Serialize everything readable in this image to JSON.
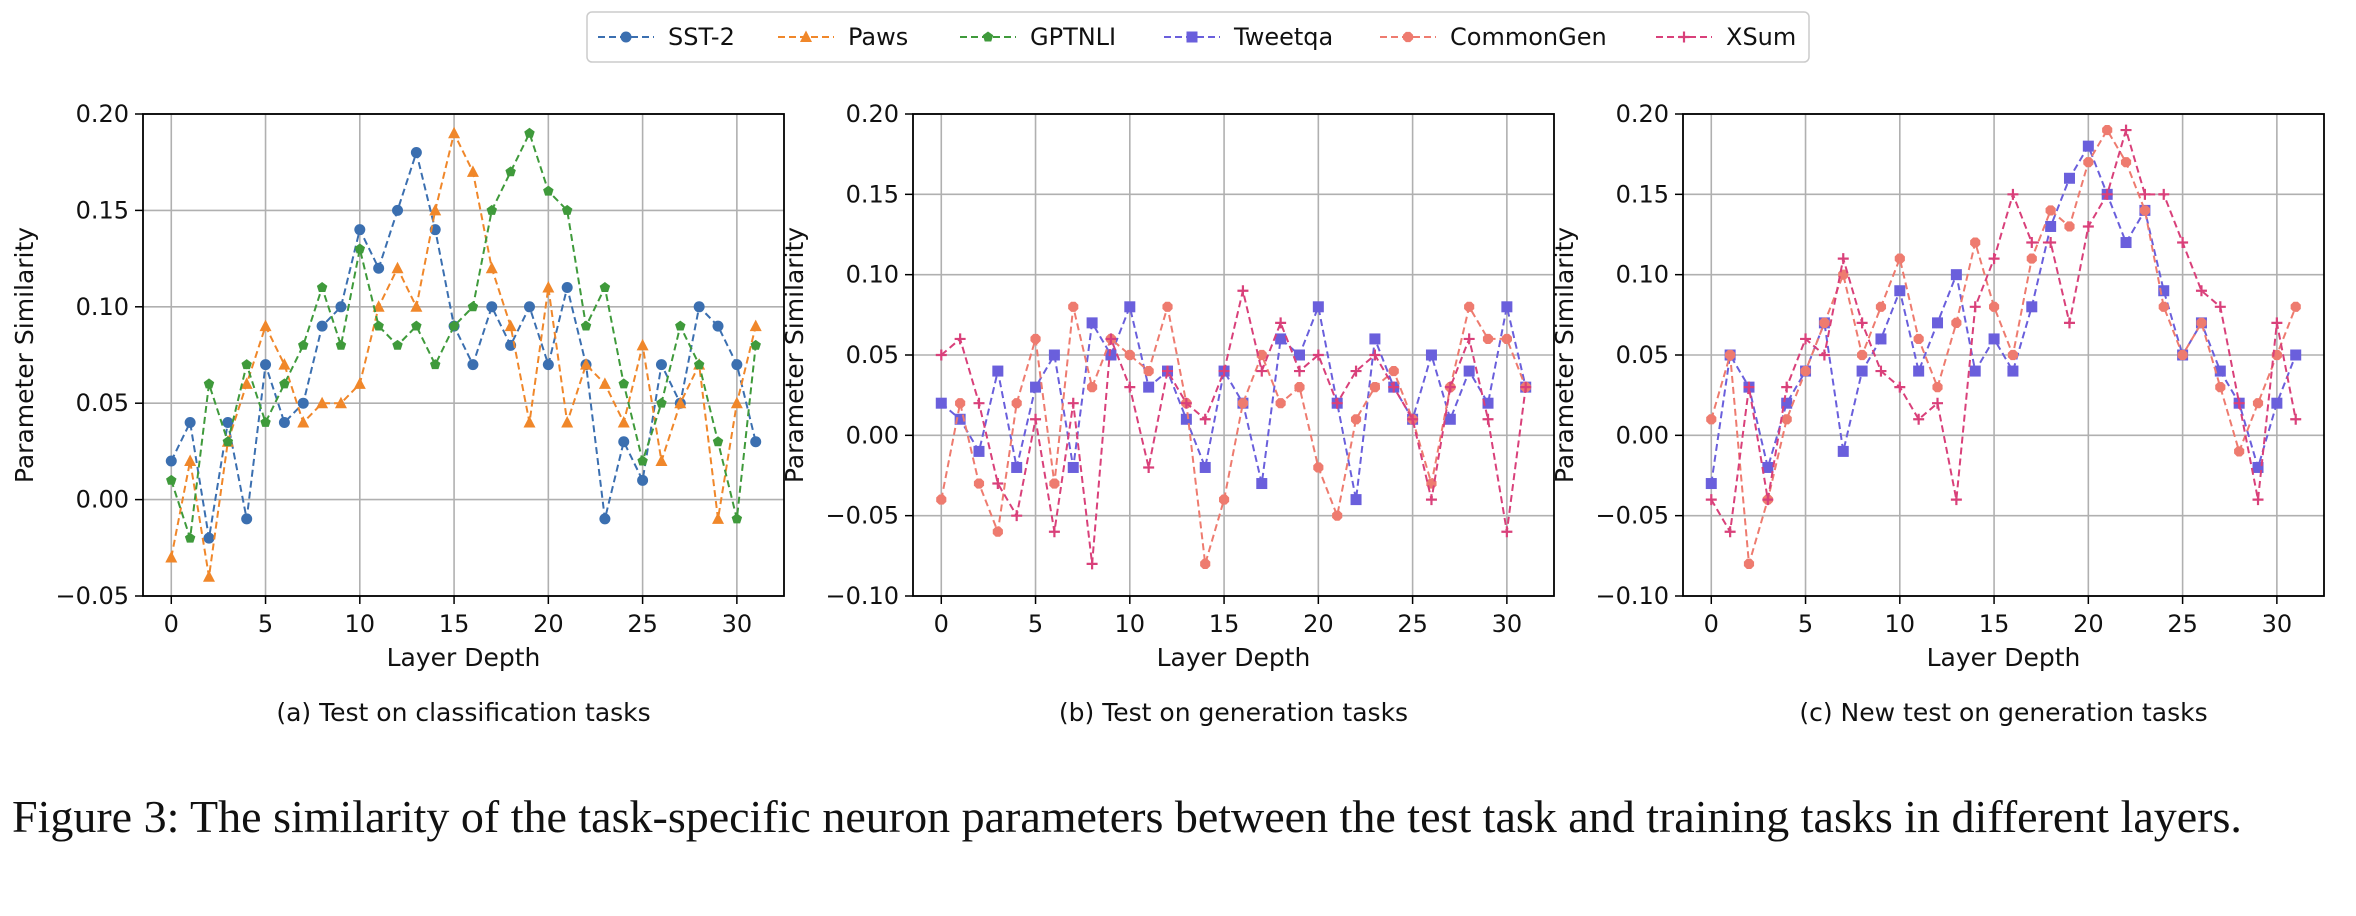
{
  "legend": [
    {
      "name": "SST-2",
      "color": "#3b6fb0",
      "marker": "circle"
    },
    {
      "name": "Paws",
      "color": "#f0872a",
      "marker": "triangle"
    },
    {
      "name": "GPTNLI",
      "color": "#3f9a3b",
      "marker": "pentagon"
    },
    {
      "name": "Tweetqa",
      "color": "#6a5fdc",
      "marker": "square"
    },
    {
      "name": "CommonGen",
      "color": "#ee7b6f",
      "marker": "octagon"
    },
    {
      "name": "XSum",
      "color": "#d9407a",
      "marker": "plus"
    }
  ],
  "chart_data": [
    {
      "type": "line",
      "subtitle": "(a) Test on classification tasks",
      "xlabel": "Layer Depth",
      "ylabel": "Parameter Similarity",
      "xlim": [
        -1.5,
        32.5
      ],
      "ylim": [
        -0.05,
        0.2
      ],
      "xticks": [
        0,
        5,
        10,
        15,
        20,
        25,
        30
      ],
      "yticks": [
        -0.05,
        0.0,
        0.05,
        0.1,
        0.15,
        0.2
      ],
      "ytick_labels": [
        "−0.05",
        "0.00",
        "0.05",
        "0.10",
        "0.15",
        "0.20"
      ],
      "grid": true,
      "x": [
        0,
        1,
        2,
        3,
        4,
        5,
        6,
        7,
        8,
        9,
        10,
        11,
        12,
        13,
        14,
        15,
        16,
        17,
        18,
        19,
        20,
        21,
        22,
        23,
        24,
        25,
        26,
        27,
        28,
        29,
        30,
        31
      ],
      "series": [
        {
          "name": "SST-2",
          "color": "#3b6fb0",
          "marker": "circle",
          "values": [
            0.02,
            0.04,
            -0.02,
            0.04,
            -0.01,
            0.07,
            0.04,
            0.05,
            0.09,
            0.1,
            0.14,
            0.12,
            0.15,
            0.18,
            0.14,
            0.09,
            0.07,
            0.1,
            0.08,
            0.1,
            0.07,
            0.11,
            0.07,
            -0.01,
            0.03,
            0.01,
            0.07,
            0.05,
            0.1,
            0.09,
            0.07,
            0.03
          ]
        },
        {
          "name": "Paws",
          "color": "#f0872a",
          "marker": "triangle",
          "values": [
            -0.03,
            0.02,
            -0.04,
            0.03,
            0.06,
            0.09,
            0.07,
            0.04,
            0.05,
            0.05,
            0.06,
            0.1,
            0.12,
            0.1,
            0.15,
            0.19,
            0.17,
            0.12,
            0.09,
            0.04,
            0.11,
            0.04,
            0.07,
            0.06,
            0.04,
            0.08,
            0.02,
            0.05,
            0.07,
            -0.01,
            0.05,
            0.09
          ]
        },
        {
          "name": "GPTNLI",
          "color": "#3f9a3b",
          "marker": "pentagon",
          "values": [
            0.01,
            -0.02,
            0.06,
            0.03,
            0.07,
            0.04,
            0.06,
            0.08,
            0.11,
            0.08,
            0.13,
            0.09,
            0.08,
            0.09,
            0.07,
            0.09,
            0.1,
            0.15,
            0.17,
            0.19,
            0.16,
            0.15,
            0.09,
            0.11,
            0.06,
            0.02,
            0.05,
            0.09,
            0.07,
            0.03,
            -0.01,
            0.08
          ]
        }
      ]
    },
    {
      "type": "line",
      "subtitle": "(b) Test on generation tasks",
      "xlabel": "Layer Depth",
      "ylabel": "Parameter Similarity",
      "xlim": [
        -1.5,
        32.5
      ],
      "ylim": [
        -0.1,
        0.2
      ],
      "xticks": [
        0,
        5,
        10,
        15,
        20,
        25,
        30
      ],
      "yticks": [
        -0.1,
        -0.05,
        0.0,
        0.05,
        0.1,
        0.15,
        0.2
      ],
      "ytick_labels": [
        "−0.10",
        "−0.05",
        "0.00",
        "0.05",
        "0.10",
        "0.15",
        "0.20"
      ],
      "grid": true,
      "x": [
        0,
        1,
        2,
        3,
        4,
        5,
        6,
        7,
        8,
        9,
        10,
        11,
        12,
        13,
        14,
        15,
        16,
        17,
        18,
        19,
        20,
        21,
        22,
        23,
        24,
        25,
        26,
        27,
        28,
        29,
        30,
        31
      ],
      "series": [
        {
          "name": "Tweetqa",
          "color": "#6a5fdc",
          "marker": "square",
          "values": [
            0.02,
            0.01,
            -0.01,
            0.04,
            -0.02,
            0.03,
            0.05,
            -0.02,
            0.07,
            0.05,
            0.08,
            0.03,
            0.04,
            0.01,
            -0.02,
            0.04,
            0.02,
            -0.03,
            0.06,
            0.05,
            0.08,
            0.02,
            -0.04,
            0.06,
            0.03,
            0.01,
            0.05,
            0.01,
            0.04,
            0.02,
            0.08,
            0.03
          ]
        },
        {
          "name": "CommonGen",
          "color": "#ee7b6f",
          "marker": "octagon",
          "values": [
            -0.04,
            0.02,
            -0.03,
            -0.06,
            0.02,
            0.06,
            -0.03,
            0.08,
            0.03,
            0.06,
            0.05,
            0.04,
            0.08,
            0.02,
            -0.08,
            -0.04,
            0.02,
            0.05,
            0.02,
            0.03,
            -0.02,
            -0.05,
            0.01,
            0.03,
            0.04,
            0.01,
            -0.03,
            0.03,
            0.08,
            0.06,
            0.06,
            0.03
          ]
        },
        {
          "name": "XSum",
          "color": "#d9407a",
          "marker": "plus",
          "values": [
            0.05,
            0.06,
            0.02,
            -0.03,
            -0.05,
            0.01,
            -0.06,
            0.02,
            -0.08,
            0.06,
            0.03,
            -0.02,
            0.04,
            0.02,
            0.01,
            0.04,
            0.09,
            0.04,
            0.07,
            0.04,
            0.05,
            0.02,
            0.04,
            0.05,
            0.03,
            0.01,
            -0.04,
            0.03,
            0.06,
            0.01,
            -0.06,
            0.03
          ]
        }
      ]
    },
    {
      "type": "line",
      "subtitle": "(c) New test on generation tasks",
      "xlabel": "Layer Depth",
      "ylabel": "Parameter Similarity",
      "xlim": [
        -1.5,
        32.5
      ],
      "ylim": [
        -0.1,
        0.2
      ],
      "xticks": [
        0,
        5,
        10,
        15,
        20,
        25,
        30
      ],
      "yticks": [
        -0.1,
        -0.05,
        0.0,
        0.05,
        0.1,
        0.15,
        0.2
      ],
      "ytick_labels": [
        "−0.10",
        "−0.05",
        "0.00",
        "0.05",
        "0.10",
        "0.15",
        "0.20"
      ],
      "grid": true,
      "x": [
        0,
        1,
        2,
        3,
        4,
        5,
        6,
        7,
        8,
        9,
        10,
        11,
        12,
        13,
        14,
        15,
        16,
        17,
        18,
        19,
        20,
        21,
        22,
        23,
        24,
        25,
        26,
        27,
        28,
        29,
        30,
        31
      ],
      "series": [
        {
          "name": "Tweetqa",
          "color": "#6a5fdc",
          "marker": "square",
          "values": [
            -0.03,
            0.05,
            0.03,
            -0.02,
            0.02,
            0.04,
            0.07,
            -0.01,
            0.04,
            0.06,
            0.09,
            0.04,
            0.07,
            0.1,
            0.04,
            0.06,
            0.04,
            0.08,
            0.13,
            0.16,
            0.18,
            0.15,
            0.12,
            0.14,
            0.09,
            0.05,
            0.07,
            0.04,
            0.02,
            -0.02,
            0.02,
            0.05
          ]
        },
        {
          "name": "CommonGen",
          "color": "#ee7b6f",
          "marker": "octagon",
          "values": [
            0.01,
            0.05,
            -0.08,
            -0.04,
            0.01,
            0.04,
            0.07,
            0.1,
            0.05,
            0.08,
            0.11,
            0.06,
            0.03,
            0.07,
            0.12,
            0.08,
            0.05,
            0.11,
            0.14,
            0.13,
            0.17,
            0.19,
            0.17,
            0.14,
            0.08,
            0.05,
            0.07,
            0.03,
            -0.01,
            0.02,
            0.05,
            0.08
          ]
        },
        {
          "name": "XSum",
          "color": "#d9407a",
          "marker": "plus",
          "values": [
            -0.04,
            -0.06,
            0.03,
            -0.04,
            0.03,
            0.06,
            0.05,
            0.11,
            0.07,
            0.04,
            0.03,
            0.01,
            0.02,
            -0.04,
            0.08,
            0.11,
            0.15,
            0.12,
            0.12,
            0.07,
            0.13,
            0.15,
            0.19,
            0.15,
            0.15,
            0.12,
            0.09,
            0.08,
            0.02,
            -0.04,
            0.07,
            0.01
          ]
        }
      ]
    }
  ],
  "caption": "Figure 3: The similarity of the task-specific neuron parameters between the test task and training tasks in different layers."
}
